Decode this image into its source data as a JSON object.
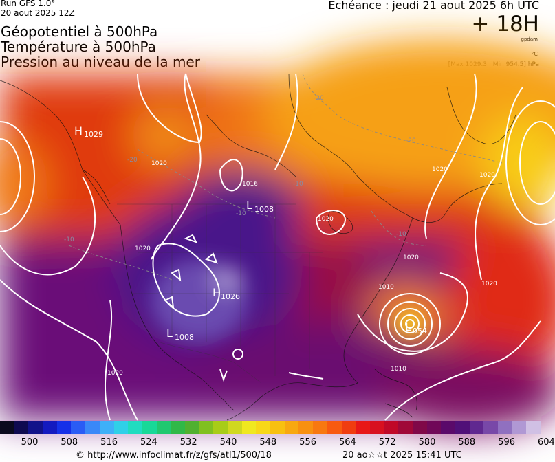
{
  "header": {
    "run": "Run GFS 1.0°",
    "run_date": "20 aout 2025 12Z",
    "titles": [
      "Géopotentiel à 500hPa",
      "Température à 500hPa",
      "Pression au niveau de la mer"
    ],
    "valid": "Echéance : jeudi 21 aout 2025 6h UTC",
    "lead": "+ 18H",
    "unit_geopotential": "gpdam",
    "unit_temperature": "°C",
    "max_min": "[Max 1029.3 | Min 954.5] hPa"
  },
  "map": {
    "pressure_centers": [
      {
        "type": "H",
        "value": "1029"
      },
      {
        "type": "L",
        "value": "1008"
      },
      {
        "type": "H",
        "value": "1026"
      },
      {
        "type": "L",
        "value": "1008"
      },
      {
        "type": "L",
        "value": "954"
      }
    ],
    "isobar_labels": [
      "1020",
      "1020",
      "1016",
      "1020",
      "1020",
      "1020",
      "1020",
      "1020",
      "1020",
      "1010",
      "1010"
    ],
    "temperature_labels": [
      "-20",
      "-20",
      "-20",
      "-10",
      "-10",
      "-10",
      "-10"
    ]
  },
  "colorbar": {
    "colors": [
      "#0a0a1e",
      "#0f0a50",
      "#12128a",
      "#141ac0",
      "#1630e8",
      "#2a5cf5",
      "#3a88f8",
      "#3eb0f8",
      "#30d0e8",
      "#20dcc0",
      "#18d898",
      "#20c870",
      "#30b848",
      "#50b030",
      "#80c020",
      "#a8cc18",
      "#d0d820",
      "#f0e820",
      "#f8d818",
      "#f8c010",
      "#f8a810",
      "#f89010",
      "#f87810",
      "#f85a10",
      "#f03c10",
      "#e81818",
      "#d81020",
      "#c00828",
      "#a00838",
      "#800848",
      "#700858",
      "#5a0a6a",
      "#501078",
      "#602890",
      "#7848a8",
      "#9070c0",
      "#b098d4",
      "#d0c0e4"
    ],
    "ticks": [
      "500",
      "508",
      "516",
      "524",
      "532",
      "540",
      "548",
      "556",
      "564",
      "572",
      "580",
      "588",
      "596",
      "604"
    ]
  },
  "footer": {
    "copyright": "© http://www.infoclimat.fr/z/gfs/atl1/500/18",
    "generated": "20 ao☆☆t 2025 15:41 UTC"
  }
}
